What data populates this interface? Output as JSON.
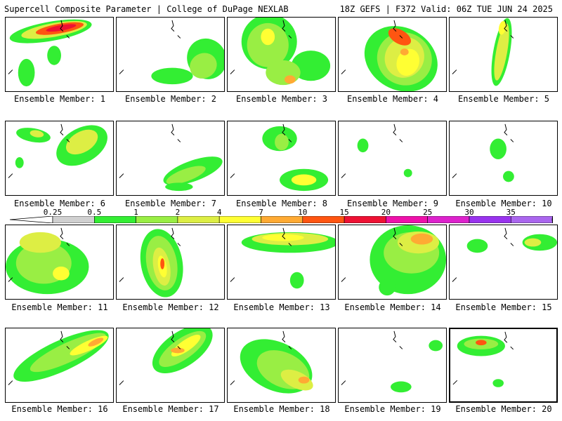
{
  "header": {
    "title": "Supercell Composite Parameter | College of DuPage NEXLAB",
    "run_info": "18Z GEFS | F372 Valid: 06Z TUE JUN 24 2025"
  },
  "legend": {
    "ticks": [
      "0.25",
      "0.5",
      "1",
      "2",
      "4",
      "7",
      "10",
      "15",
      "20",
      "25",
      "30",
      "35"
    ],
    "colors": [
      "#d0d0d0",
      "#33ee33",
      "#99ee44",
      "#ddee44",
      "#ffff33",
      "#ffaa33",
      "#ff5511",
      "#ee1133",
      "#ee11aa",
      "#dd22cc",
      "#9933ee",
      "#aa66ee",
      "#22dddd"
    ]
  },
  "panels": [
    {
      "label": "Ensemble Member: 1",
      "selected": false
    },
    {
      "label": "Ensemble Member: 2",
      "selected": false
    },
    {
      "label": "Ensemble Member: 3",
      "selected": false
    },
    {
      "label": "Ensemble Member: 4",
      "selected": false
    },
    {
      "label": "Ensemble Member: 5",
      "selected": false
    },
    {
      "label": "Ensemble Member: 6",
      "selected": false
    },
    {
      "label": "Ensemble Member: 7",
      "selected": false
    },
    {
      "label": "Ensemble Member: 8",
      "selected": false
    },
    {
      "label": "Ensemble Member: 9",
      "selected": false
    },
    {
      "label": "Ensemble Member: 10",
      "selected": false
    },
    {
      "label": "Ensemble Member: 11",
      "selected": false
    },
    {
      "label": "Ensemble Member: 12",
      "selected": false
    },
    {
      "label": "Ensemble Member: 13",
      "selected": false
    },
    {
      "label": "Ensemble Member: 14",
      "selected": false
    },
    {
      "label": "Ensemble Member: 15",
      "selected": false
    },
    {
      "label": "Ensemble Member: 16",
      "selected": false
    },
    {
      "label": "Ensemble Member: 17",
      "selected": false
    },
    {
      "label": "Ensemble Member: 18",
      "selected": false
    },
    {
      "label": "Ensemble Member: 19",
      "selected": false
    },
    {
      "label": "Ensemble Member: 20",
      "selected": true
    }
  ]
}
